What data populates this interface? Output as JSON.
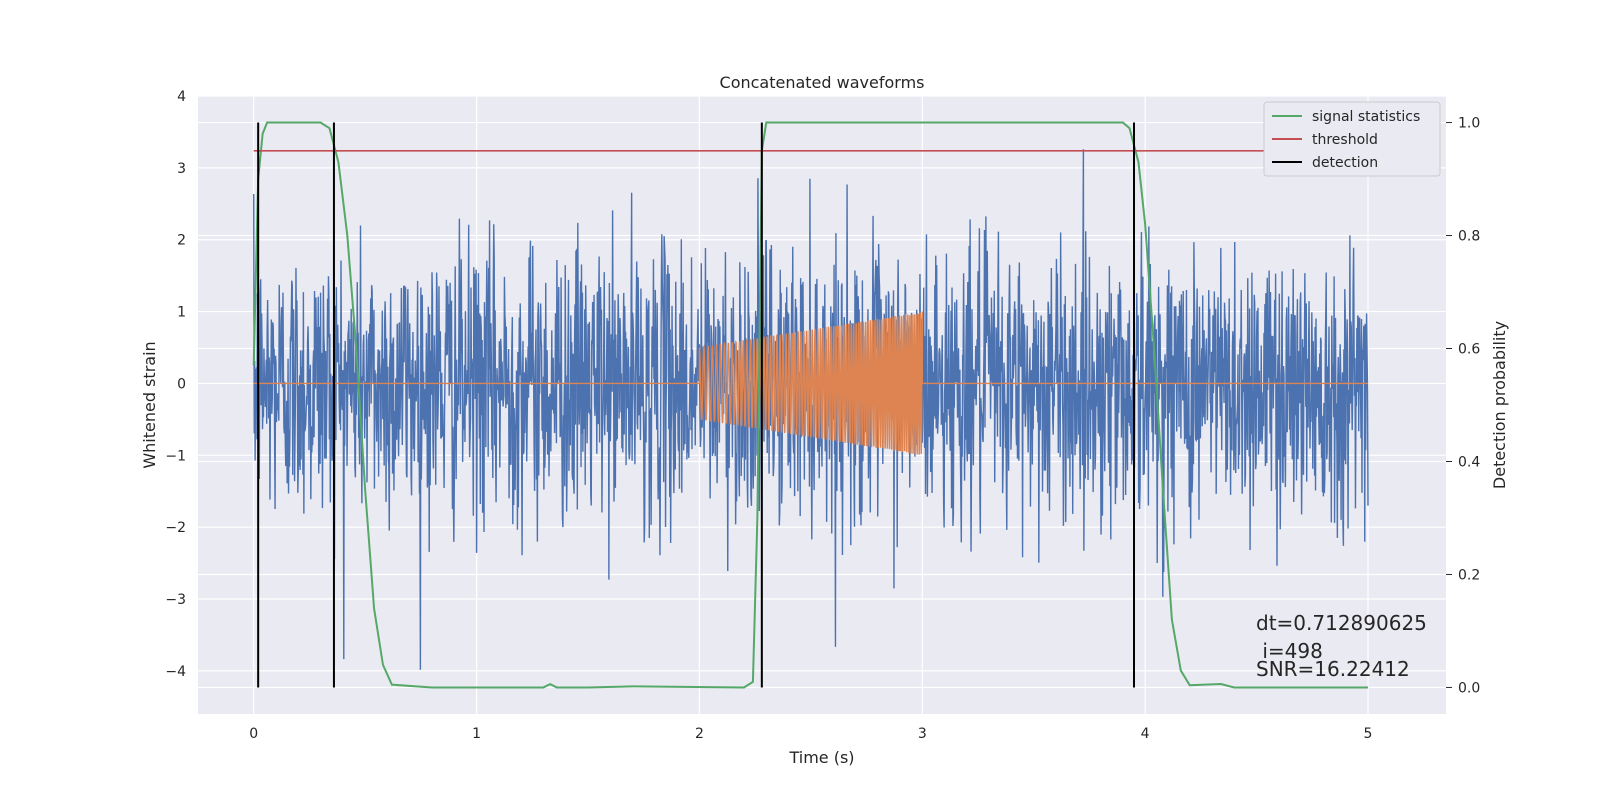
{
  "chart_data": {
    "type": "line",
    "title": "Concatenated waveforms",
    "xlabel": "Time (s)",
    "ylabel": "Whitened strain",
    "y2label": "Detection probability",
    "xlim": [
      -0.25,
      5.35
    ],
    "ylim": [
      -4.6,
      4.0
    ],
    "y2lim": [
      -0.047,
      1.047
    ],
    "xticks": [
      0,
      1,
      2,
      3,
      4,
      5
    ],
    "xtick_labels": [
      "0",
      "1",
      "2",
      "3",
      "4",
      "5"
    ],
    "yticks": [
      4,
      3,
      2,
      1,
      0,
      -1,
      -2,
      -3,
      -4
    ],
    "ytick_labels": [
      "4",
      "3",
      "2",
      "1",
      "0",
      "−1",
      "−2",
      "−3",
      "−4"
    ],
    "y2ticks": [
      1.0,
      0.8,
      0.6,
      0.4,
      0.2,
      0.0
    ],
    "y2tick_labels": [
      "1.0",
      "0.8",
      "0.6",
      "0.4",
      "0.2",
      "0.0"
    ],
    "grid": true,
    "legend_position": "top-right",
    "series": [
      {
        "name": "whitened strain",
        "axis": "left",
        "color": "#4c72b0",
        "kind": "noise",
        "x_range": [
          0,
          5
        ],
        "approx_std": 0.95,
        "approx_min": -4.3,
        "approx_max": 3.6
      },
      {
        "name": "injected waveform",
        "axis": "left",
        "color": "#dd8452",
        "kind": "chirp",
        "x_range": [
          0,
          5
        ],
        "active_range": [
          2.0,
          3.0
        ],
        "amplitude_start": 0.5,
        "amplitude_end": 1.0
      },
      {
        "name": "signal statistics",
        "axis": "right",
        "color": "#55a868",
        "x": [
          0,
          0.02,
          0.04,
          0.06,
          0.1,
          0.3,
          0.34,
          0.38,
          0.42,
          0.46,
          0.5,
          0.54,
          0.58,
          0.62,
          0.8,
          1.3,
          1.33,
          1.36,
          1.5,
          1.7,
          2.2,
          2.24,
          2.26,
          2.28,
          2.3,
          2.4,
          3.9,
          3.93,
          3.97,
          4.0,
          4.04,
          4.08,
          4.12,
          4.16,
          4.2,
          4.34,
          4.4,
          5.0
        ],
        "values": [
          0.57,
          0.9,
          0.98,
          1.0,
          1.0,
          1.0,
          0.99,
          0.93,
          0.8,
          0.6,
          0.35,
          0.14,
          0.04,
          0.005,
          0.0,
          0.0,
          0.006,
          0.0,
          0.0,
          0.002,
          0.0,
          0.01,
          0.3,
          0.95,
          1.0,
          1.0,
          1.0,
          0.99,
          0.93,
          0.82,
          0.6,
          0.35,
          0.12,
          0.03,
          0.004,
          0.006,
          0.0,
          0.0
        ]
      },
      {
        "name": "threshold",
        "axis": "right",
        "color": "#c44e52",
        "x": [
          0,
          5
        ],
        "values": [
          0.95,
          0.95
        ]
      }
    ],
    "detections": {
      "name": "detection",
      "color": "#000000",
      "x": [
        0.02,
        0.36,
        2.28,
        3.95
      ]
    },
    "legend": [
      {
        "label": "signal statistics",
        "color": "#55a868"
      },
      {
        "label": "threshold",
        "color": "#c44e52"
      },
      {
        "label": "detection",
        "color": "#000000"
      }
    ],
    "annotations": {
      "dt": "dt=0.712890625",
      "i": " i=498",
      "snr": "SNR=16.22412"
    }
  }
}
